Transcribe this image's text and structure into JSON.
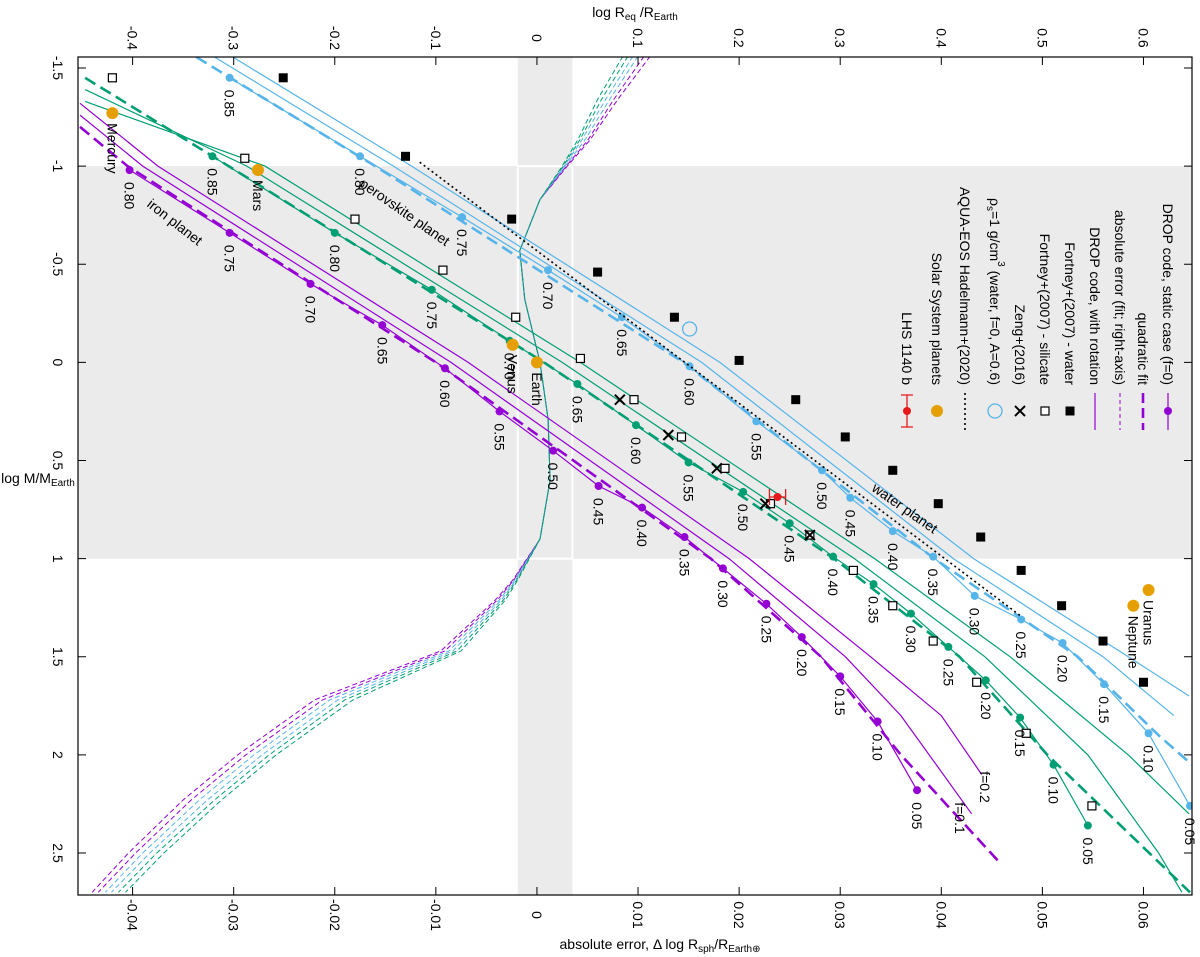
{
  "chart_data": {
    "type": "line",
    "x_label": [
      {
        "text": "log M/M"
      },
      {
        "text": "Earth",
        "sub": true
      }
    ],
    "y_label": [
      {
        "text": "log R"
      },
      {
        "text": "eq",
        "sub": true
      },
      {
        "text": " /R"
      },
      {
        "text": "Earth",
        "sub": true
      }
    ],
    "y2_label": [
      {
        "text": "absolute error, Δ log R"
      },
      {
        "text": "sph",
        "sub": true
      },
      {
        "text": "/R"
      },
      {
        "text": "Earth⊕",
        "sub": true
      }
    ],
    "xlim": [
      -1.556,
      2.714
    ],
    "xticks": [
      -1.5,
      -1,
      -0.5,
      0,
      0.5,
      1,
      1.5,
      2,
      2.5
    ],
    "ylim": [
      -0.454,
      0.648
    ],
    "yticks": [
      -0.4,
      -0.3,
      -0.2,
      -0.1,
      0,
      0.1,
      0.2,
      0.3,
      0.4,
      0.5,
      0.6
    ],
    "y2lim": [
      -0.0454,
      0.0648
    ],
    "y2ticks": [
      -0.04,
      -0.03,
      -0.02,
      -0.01,
      0,
      0.01,
      0.02,
      0.03,
      0.04,
      0.05,
      0.06
    ],
    "shaded": {
      "x": [
        -1,
        1
      ],
      "y2": [
        -0.0019,
        0.0035
      ],
      "color": "#ebebeb"
    },
    "series": [
      {
        "kind": "error",
        "axis": "y2",
        "color": "#9400d3",
        "x": [
          -1.56,
          -1.34,
          -1.13,
          -1.0,
          -0.83,
          -0.57,
          -0.32,
          0,
          0.29,
          0.6,
          0.9,
          1.11,
          1.21,
          1.47,
          1.72,
          2.0,
          2.23,
          2.5,
          2.7
        ],
        "values": [
          0.0112,
          0.008,
          0.0052,
          0.003,
          0.0003,
          -0.0017,
          -0.0012,
          0.0003,
          0.0011,
          0.0013,
          0.0003,
          -0.0024,
          -0.0041,
          -0.0095,
          -0.022,
          -0.0296,
          -0.035,
          -0.0404,
          -0.044
        ]
      },
      {
        "kind": "error",
        "axis": "y2",
        "color": "#9400d3",
        "x": [
          -1.56,
          -1.34,
          -1.13,
          -1.0,
          -0.83,
          -0.57,
          -0.32,
          0,
          0.29,
          0.6,
          0.9,
          1.11,
          1.21,
          1.47,
          1.72,
          2.0,
          2.23,
          2.5,
          2.7
        ],
        "values": [
          0.0106,
          0.0076,
          0.005,
          0.0029,
          0.0003,
          -0.0017,
          -0.0012,
          0.0003,
          0.0011,
          0.0013,
          0.0003,
          -0.0023,
          -0.0039,
          -0.0091,
          -0.0212,
          -0.0288,
          -0.0342,
          -0.0397,
          -0.0434
        ]
      },
      {
        "kind": "error",
        "axis": "y2",
        "color": "#56b4e9",
        "x": [
          -1.56,
          -1.34,
          -1.13,
          -1.0,
          -0.83,
          -0.57,
          -0.32,
          0,
          0.29,
          0.6,
          0.9,
          1.11,
          1.21,
          1.47,
          1.72,
          2.0,
          2.23,
          2.5,
          2.7
        ],
        "values": [
          0.01,
          0.0072,
          0.0047,
          0.0028,
          0.0003,
          -0.0017,
          -0.0012,
          0.0003,
          0.0011,
          0.0013,
          0.0003,
          -0.0022,
          -0.0037,
          -0.0087,
          -0.0205,
          -0.028,
          -0.0334,
          -0.039,
          -0.0427
        ]
      },
      {
        "kind": "error",
        "axis": "y2",
        "color": "#56b4e9",
        "x": [
          -1.56,
          -1.34,
          -1.13,
          -1.0,
          -0.83,
          -0.57,
          -0.32,
          0,
          0.29,
          0.6,
          0.9,
          1.11,
          1.21,
          1.47,
          1.72,
          2.0,
          2.23,
          2.5,
          2.7
        ],
        "values": [
          0.0095,
          0.0068,
          0.0044,
          0.0027,
          0.0003,
          -0.0017,
          -0.0012,
          0.0003,
          0.0011,
          0.0013,
          0.0003,
          -0.0021,
          -0.0035,
          -0.0083,
          -0.0197,
          -0.0272,
          -0.0326,
          -0.0383,
          -0.0421
        ]
      },
      {
        "kind": "error",
        "axis": "y2",
        "color": "#009e73",
        "x": [
          -1.56,
          -1.34,
          -1.13,
          -1.0,
          -0.83,
          -0.57,
          -0.32,
          0,
          0.29,
          0.6,
          0.9,
          1.11,
          1.21,
          1.47,
          1.72,
          2.0,
          2.23,
          2.5,
          2.7
        ],
        "values": [
          0.009,
          0.0064,
          0.0042,
          0.0026,
          0.0003,
          -0.0017,
          -0.0012,
          0.0003,
          0.0011,
          0.0013,
          0.0003,
          -0.002,
          -0.0033,
          -0.0079,
          -0.019,
          -0.0265,
          -0.0319,
          -0.0376,
          -0.0414
        ]
      },
      {
        "kind": "error",
        "axis": "y2",
        "color": "#009e73",
        "x": [
          -1.56,
          -1.34,
          -1.13,
          -1.0,
          -0.83,
          -0.57,
          -0.32,
          0,
          0.29,
          0.6,
          0.9,
          1.11,
          1.21,
          1.47,
          1.72,
          2.0,
          2.23,
          2.5,
          2.7
        ],
        "values": [
          0.0085,
          0.006,
          0.004,
          0.0025,
          0.0003,
          -0.0017,
          -0.0012,
          0.0003,
          0.0011,
          0.0013,
          0.0003,
          -0.0019,
          -0.0031,
          -0.0075,
          -0.0182,
          -0.0258,
          -0.0312,
          -0.0369,
          -0.0407
        ]
      },
      {
        "kind": "rotation",
        "color": "#56b4e9",
        "x": [
          -1.556,
          -1,
          0,
          1,
          1.5,
          1.8
        ],
        "values": [
          -0.319,
          -0.142,
          0.163,
          0.412,
          0.56,
          0.63
        ]
      },
      {
        "kind": "rotation",
        "color": "#56b4e9",
        "x": [
          -1.556,
          -1,
          0,
          1,
          1.5,
          1.7
        ],
        "values": [
          -0.301,
          -0.124,
          0.181,
          0.432,
          0.585,
          0.645
        ]
      },
      {
        "kind": "fit",
        "color": "#56b4e9",
        "x": [
          -1.556,
          -1.0,
          0,
          1.0,
          1.5,
          1.9,
          2.05
        ],
        "values": [
          -0.337,
          -0.16,
          0.145,
          0.393,
          0.535,
          0.615,
          0.648
        ]
      },
      {
        "kind": "static",
        "color": "#56b4e9",
        "x": [
          -1.45,
          -1.05,
          -0.74,
          -0.47,
          -0.23,
          0.02,
          0.3,
          0.55,
          0.69,
          0.86,
          0.99,
          1.19,
          1.31,
          1.43,
          1.64,
          1.89,
          2.26
        ],
        "values": [
          -0.304,
          -0.175,
          -0.074,
          0.011,
          0.084,
          0.151,
          0.217,
          0.282,
          0.31,
          0.352,
          0.392,
          0.433,
          0.479,
          0.52,
          0.561,
          0.605,
          0.646
        ],
        "point_labels": [
          "0.85",
          "0.80",
          "0.75",
          "0.70",
          "0.65",
          "0.60",
          "0.55",
          "0.50",
          "0.45",
          "0.40",
          "0.35",
          "0.30",
          "0.25",
          "0.20",
          "0.15",
          "0.10",
          "0.05"
        ]
      },
      {
        "kind": "rotation",
        "color": "#009e73",
        "x": [
          -1.39,
          -1,
          0,
          1,
          1.5,
          2,
          2.5,
          2.7
        ],
        "values": [
          -0.447,
          -0.287,
          0.025,
          0.314,
          0.443,
          0.545,
          0.615,
          0.638
        ]
      },
      {
        "kind": "rotation",
        "color": "#009e73",
        "x": [
          -1.33,
          -1,
          0,
          1,
          1.5,
          2,
          2.3
        ],
        "values": [
          -0.447,
          -0.269,
          0.043,
          0.334,
          0.468,
          0.585,
          0.645
        ]
      },
      {
        "kind": "fit",
        "color": "#009e73",
        "x": [
          -1.45,
          -1,
          0,
          1,
          1.5,
          2,
          2.7
        ],
        "values": [
          -0.447,
          -0.305,
          0.007,
          0.294,
          0.418,
          0.505,
          0.646
        ]
      },
      {
        "kind": "static",
        "color": "#009e73",
        "x": [
          -1.05,
          -0.66,
          -0.37,
          -0.11,
          0.11,
          0.32,
          0.51,
          0.66,
          0.82,
          0.99,
          1.13,
          1.28,
          1.45,
          1.62,
          1.81,
          2.05,
          2.36
        ],
        "values": [
          -0.321,
          -0.2,
          -0.104,
          -0.027,
          0.04,
          0.098,
          0.15,
          0.204,
          0.25,
          0.293,
          0.333,
          0.37,
          0.407,
          0.444,
          0.478,
          0.511,
          0.545
        ],
        "point_labels": [
          "0.85",
          "0.80",
          "0.75",
          "0.70",
          "0.65",
          "0.60",
          "0.55",
          "0.50",
          "0.45",
          "0.40",
          "0.35",
          "0.30",
          "0.25",
          "0.20",
          "0.15",
          "0.10",
          "0.05"
        ]
      },
      {
        "kind": "rotation",
        "color": "#9400d3",
        "x": [
          -1.26,
          -1,
          0,
          1,
          1.5,
          1.8,
          2.3
        ],
        "values": [
          -0.452,
          -0.39,
          -0.085,
          0.19,
          0.305,
          0.36,
          0.43
        ]
      },
      {
        "kind": "rotation",
        "color": "#9400d3",
        "x": [
          -1.32,
          -1,
          0,
          1,
          1.5,
          1.8,
          2.1
        ],
        "values": [
          -0.452,
          -0.375,
          -0.068,
          0.21,
          0.33,
          0.4,
          0.44
        ]
      },
      {
        "kind": "fit",
        "color": "#9400d3",
        "x": [
          -1.2,
          -1,
          0,
          1,
          1.5,
          2,
          2.55
        ],
        "values": [
          -0.452,
          -0.405,
          -0.1,
          0.172,
          0.281,
          0.36,
          0.458
        ]
      },
      {
        "kind": "static",
        "color": "#9400d3",
        "x": [
          -0.98,
          -0.66,
          -0.4,
          -0.19,
          0.03,
          0.25,
          0.45,
          0.63,
          0.74,
          0.89,
          1.05,
          1.23,
          1.4,
          1.6,
          1.83,
          2.18
        ],
        "values": [
          -0.403,
          -0.304,
          -0.224,
          -0.153,
          -0.091,
          -0.037,
          0.016,
          0.061,
          0.104,
          0.146,
          0.184,
          0.227,
          0.262,
          0.3,
          0.337,
          0.376
        ],
        "point_labels": [
          "0.80",
          "0.75",
          "0.70",
          "0.65",
          "0.60",
          "0.55",
          "0.50",
          "0.45",
          "0.40",
          "0.35",
          "0.30",
          "0.25",
          "0.20",
          "0.15",
          "0.10",
          "0.05"
        ]
      },
      {
        "kind": "aqua",
        "color": "#000000",
        "x": [
          -1.02,
          1.29
        ],
        "values": [
          -0.116,
          0.478
        ]
      },
      {
        "kind": "fortney-water",
        "color": "#000000",
        "x": [
          -1.45,
          -1.05,
          -0.73,
          -0.46,
          -0.23,
          -0.01,
          0.19,
          0.38,
          0.55,
          0.72,
          0.89,
          1.06,
          1.24,
          1.42,
          1.63
        ],
        "values": [
          -0.251,
          -0.13,
          -0.025,
          0.06,
          0.136,
          0.2,
          0.256,
          0.305,
          0.352,
          0.397,
          0.439,
          0.479,
          0.519,
          0.56,
          0.6
        ]
      },
      {
        "kind": "fortney-silicate",
        "color": "#000000",
        "x": [
          -1.45,
          -1.04,
          -0.73,
          -0.47,
          -0.23,
          -0.02,
          0.19,
          0.38,
          0.54,
          0.72,
          0.88,
          1.06,
          1.24,
          1.42,
          1.63,
          1.89,
          2.26
        ],
        "values": [
          -0.42,
          -0.289,
          -0.18,
          -0.093,
          -0.021,
          0.043,
          0.096,
          0.143,
          0.186,
          0.231,
          0.27,
          0.313,
          0.352,
          0.392,
          0.435,
          0.484,
          0.549
        ]
      },
      {
        "kind": "zeng",
        "color": "#000000",
        "x": [
          0.19,
          0.37,
          0.54,
          0.72,
          0.88
        ],
        "values": [
          0.082,
          0.13,
          0.178,
          0.226,
          0.27
        ]
      },
      {
        "kind": "rho",
        "color": "#56b4e9",
        "x": [
          -0.17
        ],
        "values": [
          0.151
        ]
      },
      {
        "kind": "planets",
        "color": "#e69f00",
        "labels": [
          "Mercury",
          "Mars",
          "Venus",
          "Earth",
          "Uranus",
          "Neptune"
        ],
        "x": [
          -1.27,
          -0.98,
          -0.09,
          0,
          1.16,
          1.24
        ],
        "values": [
          -0.42,
          -0.276,
          -0.024,
          0,
          0.605,
          0.59
        ]
      },
      {
        "kind": "lhs",
        "color": "#e41a1c",
        "x": [
          0.686
        ],
        "values": [
          0.238
        ],
        "errors": [
          0.008
        ]
      }
    ],
    "annotations": [
      {
        "text": "water planet",
        "color": "#56b4e9"
      },
      {
        "text": "perovskite planet",
        "color": "#009e73"
      },
      {
        "text": "iron planet",
        "color": "#9400d3"
      },
      {
        "text": "f=0.1",
        "color": "#9400d3"
      },
      {
        "text": "f=0.2",
        "color": "#9400d3"
      }
    ],
    "legend": [
      {
        "label": "DROP code, static case (f=0)",
        "kind": "static",
        "color": "#9400d3"
      },
      {
        "label": "quadratic fit",
        "kind": "fit",
        "color": "#9400d3"
      },
      {
        "label": "absolute error (fit; right-axis)",
        "kind": "error",
        "color": "#9400d3"
      },
      {
        "label": "DROP code, with rotation",
        "kind": "rotation",
        "color": "#9400d3"
      },
      {
        "label": "Fortney+(2007) - water",
        "kind": "fortney-water",
        "color": "#000000"
      },
      {
        "label": "Fortney+(2007) - silicate",
        "kind": "fortney-silicate",
        "color": "#000000"
      },
      {
        "label": "Zeng+(2016)",
        "kind": "zeng",
        "color": "#000000"
      },
      {
        "label": [
          {
            "text": "ρ"
          },
          {
            "text": "s",
            "sub": true
          },
          {
            "text": "=1 g/cm"
          },
          {
            "text": "3",
            "sup": true
          },
          {
            "text": " (water, f=0, A=0.6)"
          }
        ],
        "kind": "rho",
        "color": "#56b4e9"
      },
      {
        "label": "AQUA-EOS Hadelmann+(2020)",
        "kind": "aqua",
        "color": "#000000"
      },
      {
        "label": "Solar System planets",
        "kind": "planets",
        "color": "#e69f00"
      },
      {
        "label": "LHS 1140 b",
        "kind": "lhs",
        "color": "#e41a1c"
      }
    ]
  }
}
